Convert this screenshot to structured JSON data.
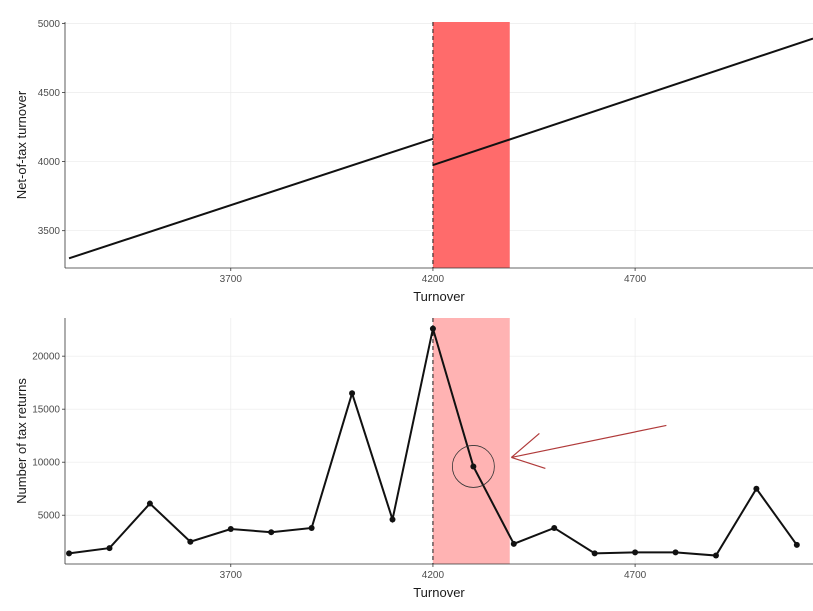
{
  "chart_data": [
    {
      "type": "line",
      "xlabel": "Turnover",
      "ylabel": "Net-of-tax turnover",
      "xlim": [
        3290,
        5140
      ],
      "ylim": [
        3230,
        5010
      ],
      "xticks": [
        3700,
        4200,
        4700
      ],
      "yticks": [
        3500,
        4000,
        4500,
        5000
      ],
      "grid": true,
      "threshold_x": 4200,
      "shaded_region": {
        "x": [
          4200,
          4390
        ],
        "color": "#ff6b6b"
      },
      "series": [
        {
          "x": [
            3300,
            4200
          ],
          "y": [
            3300,
            4165
          ]
        },
        {
          "x": [
            4200,
            5140
          ],
          "y": [
            3975,
            4890
          ]
        }
      ]
    },
    {
      "type": "line",
      "xlabel": "Turnover",
      "ylabel": "Number of tax returns",
      "xlim": [
        3290,
        5140
      ],
      "ylim": [
        400,
        23600
      ],
      "xticks": [
        3700,
        4200,
        4700
      ],
      "yticks": [
        5000,
        10000,
        15000,
        20000
      ],
      "grid": true,
      "threshold_x": 4200,
      "shaded_region": {
        "x": [
          4200,
          4390
        ],
        "color": "#ffb3b3"
      },
      "annotation": {
        "type": "circle-and-arrow",
        "target": [
          4300,
          9600
        ],
        "color": "#b03a3a"
      },
      "series": [
        {
          "x": [
            3300,
            3400,
            3500,
            3600,
            3700,
            3800,
            3900,
            4000,
            4100,
            4200,
            4300,
            4400,
            4500,
            4600,
            4700,
            4800,
            4900,
            5000,
            5100
          ],
          "y": [
            1400,
            1900,
            6100,
            2500,
            3700,
            3400,
            3800,
            16500,
            4600,
            22600,
            9600,
            2300,
            3800,
            1400,
            1500,
            1500,
            1200,
            7500,
            2200
          ]
        }
      ]
    }
  ]
}
